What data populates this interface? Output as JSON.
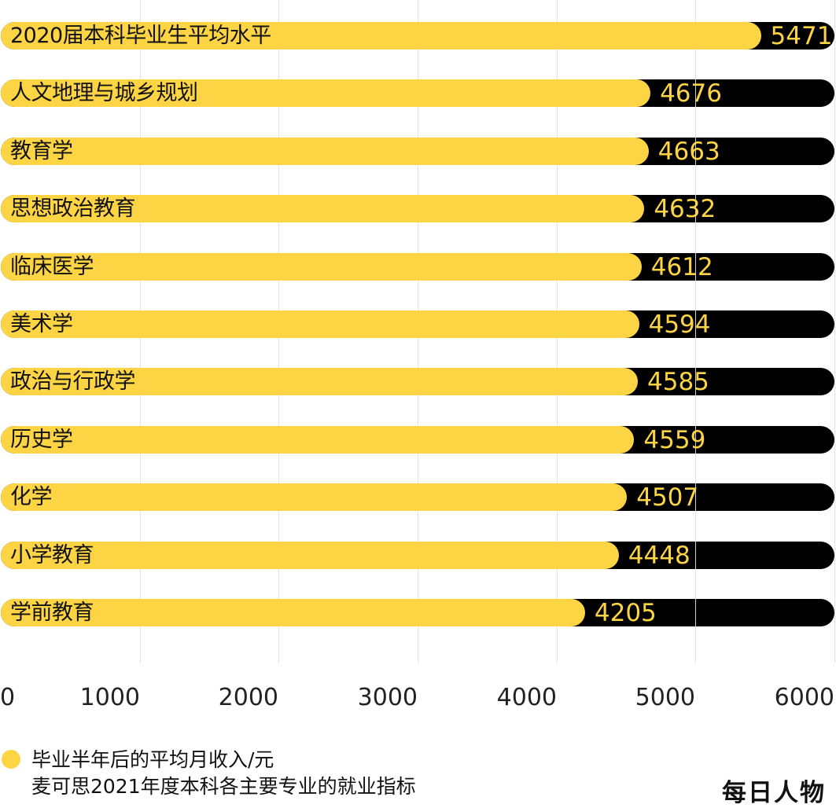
{
  "chart_data": {
    "type": "bar",
    "orientation": "horizontal",
    "title": "",
    "categories": [
      "2020届本科毕业生平均水平",
      "人文地理与城乡规划",
      "教育学",
      "思想政治教育",
      "临床医学",
      "美术学",
      "政治与行政学",
      "历史学",
      "化学",
      "小学教育",
      "学前教育"
    ],
    "series": [
      {
        "name": "毕业半年后的平均月收入/元",
        "values": [
          5471,
          4676,
          4663,
          4632,
          4612,
          4594,
          4585,
          4559,
          4507,
          4448,
          4205
        ],
        "color": "#FDD444"
      }
    ],
    "background_track_color": "#000000",
    "xlim": [
      0,
      6000
    ],
    "xticks": [
      0,
      1000,
      2000,
      3000,
      4000,
      5000,
      6000
    ],
    "xlabel": "",
    "ylabel": "",
    "grid": true,
    "legend_position": "bottom-left"
  },
  "axis": {
    "ticks": [
      "0",
      "1000",
      "2000",
      "3000",
      "4000",
      "5000",
      "6000"
    ]
  },
  "legend": {
    "label": "毕业半年后的平均月收入/元",
    "color": "#FDD444"
  },
  "source": "麦可思2021年度本科各主要专业的就业指标",
  "logo": "每日人物"
}
